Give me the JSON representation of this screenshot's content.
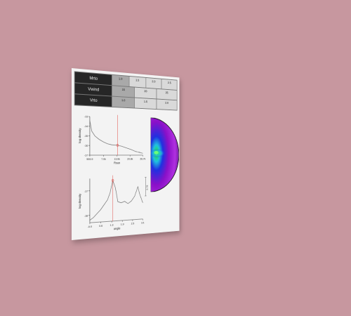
{
  "params": {
    "rows": [
      {
        "label": "Mrto",
        "values": [
          "1.0",
          "1.5",
          "2.0",
          "2.5"
        ],
        "selected": 0
      },
      {
        "label": "Vwind",
        "values": [
          "15",
          "20",
          "25"
        ],
        "selected": 0
      },
      {
        "label": "Vrto",
        "values": [
          "1.0",
          "1.5",
          "2.0"
        ],
        "selected": 0
      }
    ]
  },
  "chart_data": [
    {
      "type": "line",
      "xlabel": "Rsun",
      "ylabel": "log density",
      "x_ticks": [
        "593.9",
        "7.0k",
        "13.9k",
        "20.8k",
        "26.7k"
      ],
      "y_ticks": [
        "-13",
        "-14",
        "-15",
        "-16",
        "-17"
      ],
      "xlim": [
        593.9,
        26700
      ],
      "ylim": [
        -17,
        -13
      ],
      "x": [
        593.9,
        1500,
        3000,
        5000,
        7000,
        9000,
        11000,
        13900,
        16000,
        18000,
        20800,
        23000,
        26700
      ],
      "y": [
        -13.4,
        -14.5,
        -15.0,
        -15.35,
        -15.6,
        -15.8,
        -15.9,
        -15.95,
        -16.05,
        -16.2,
        -16.4,
        -16.6,
        -16.8
      ],
      "marker": {
        "x": 13900,
        "y": -15.95
      },
      "marker_color": "#e0504a"
    },
    {
      "type": "line",
      "xlabel": "angle",
      "ylabel": "log density",
      "x_ticks": [
        "-0.0",
        "0.6",
        "1.3",
        "1.9",
        "2.5",
        "3.1"
      ],
      "y_ticks": [
        "-17",
        "-18"
      ],
      "xlim": [
        0,
        3.1
      ],
      "ylim": [
        -18.3,
        -16.5
      ],
      "x": [
        0,
        0.2,
        0.4,
        0.6,
        0.8,
        1.0,
        1.15,
        1.3,
        1.45,
        1.6,
        1.8,
        2.0,
        2.2,
        2.4,
        2.6,
        2.8,
        2.9,
        3.1
      ],
      "y": [
        -18.2,
        -18.1,
        -17.95,
        -17.8,
        -17.6,
        -17.4,
        -17.1,
        -16.6,
        -16.9,
        -17.5,
        -17.55,
        -17.5,
        -17.6,
        -17.5,
        -17.3,
        -16.9,
        -17.2,
        -17.6
      ],
      "marker": {
        "x": 1.3,
        "y": -16.6
      },
      "marker_color": "#e0504a",
      "annotation": "0.76"
    },
    {
      "type": "heatmap",
      "description_colors": [
        "#000000",
        "#3a0a6a",
        "#8a10c8",
        "#2030e0",
        "#20c0e0",
        "#20e060"
      ]
    }
  ]
}
